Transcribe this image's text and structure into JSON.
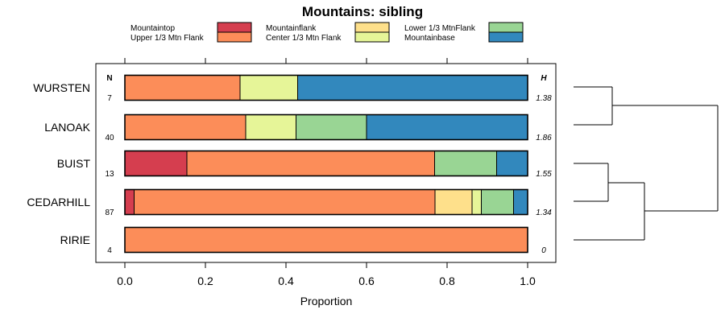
{
  "chart_data": {
    "type": "bar",
    "orientation": "horizontal",
    "stacked": true,
    "title": "Mountains: sibling",
    "xlabel": "Proportion",
    "xlim": [
      0,
      1
    ],
    "xticks": [
      "0.0",
      "0.2",
      "0.4",
      "0.6",
      "0.8",
      "1.0"
    ],
    "n_header": "N",
    "h_header": "H",
    "legend": [
      {
        "name": "Mountaintop",
        "color": "#d53e4f"
      },
      {
        "name": "Upper 1/3 Mtn Flank",
        "color": "#fc8d59"
      },
      {
        "name": "Mountainflank",
        "color": "#fee08b"
      },
      {
        "name": "Center 1/3 Mtn Flank",
        "color": "#e6f598"
      },
      {
        "name": "Lower 1/3 MtnFlank",
        "color": "#99d594"
      },
      {
        "name": "Mountainbase",
        "color": "#3288bd"
      }
    ],
    "categories": [
      "WURSTEN",
      "LANOAK",
      "BUIST",
      "CEDARHILL",
      "RIRIE"
    ],
    "n": [
      "7",
      "40",
      "13",
      "87",
      "4"
    ],
    "h": [
      "1.38",
      "1.86",
      "1.55",
      "1.34",
      "0"
    ],
    "series": [
      {
        "name": "Mountaintop",
        "values": [
          0,
          0,
          0.154,
          0.023,
          0
        ]
      },
      {
        "name": "Upper 1/3 Mtn Flank",
        "values": [
          0.286,
          0.3,
          0.615,
          0.747,
          1
        ]
      },
      {
        "name": "Mountainflank",
        "values": [
          0,
          0,
          0,
          0.092,
          0
        ]
      },
      {
        "name": "Center 1/3 Mtn Flank",
        "values": [
          0.143,
          0.125,
          0,
          0.023,
          0
        ]
      },
      {
        "name": "Lower 1/3 MtnFlank",
        "values": [
          0,
          0.175,
          0.154,
          0.08,
          0
        ]
      },
      {
        "name": "Mountainbase",
        "values": [
          0.571,
          0.4,
          0.077,
          0.035,
          0
        ]
      }
    ]
  }
}
